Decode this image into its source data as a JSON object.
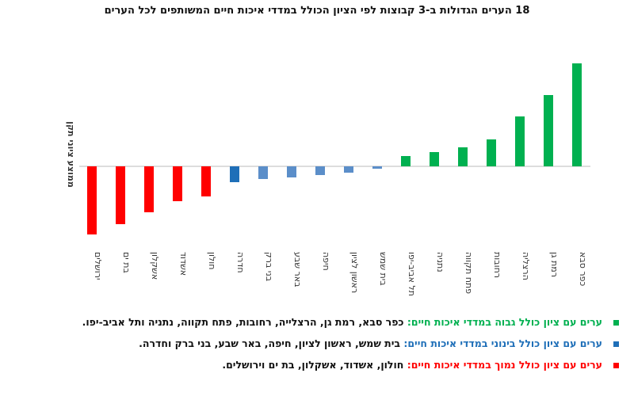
{
  "chart_data": {
    "type": "bar",
    "title": "18 הערים הגדולות ב-3 קבוצות לפי הציון הכולל במדדי איכות חיים המשותפים לכל הערים",
    "y_label": "ממוצע ציוני תקן",
    "categories": [
      "כפר סבא",
      "רמת גן",
      "הרצליה",
      "רחובות",
      "פתח תקווה",
      "נתניה",
      "תל אביב-יפו",
      "בית שמש",
      "ראשון לציון",
      "חיפה",
      "באר שבע",
      "בני ברק",
      "חדרה",
      "חולון",
      "אשדוד",
      "אשקלון",
      "בת ים",
      "ירושלים"
    ],
    "values": [
      1.3,
      0.9,
      0.63,
      0.34,
      0.24,
      0.18,
      0.13,
      -0.03,
      -0.08,
      -0.11,
      -0.14,
      -0.16,
      -0.2,
      -0.38,
      -0.44,
      -0.58,
      -0.73,
      -0.86
    ],
    "colors": [
      "#00b050",
      "#00b050",
      "#00b050",
      "#00b050",
      "#00b050",
      "#00b050",
      "#00b050",
      "#5b8ec9",
      "#5b8ec9",
      "#5b8ec9",
      "#5b8ec9",
      "#5b8ec9",
      "#1f6fb8",
      "#ff0000",
      "#ff0000",
      "#ff0000",
      "#ff0000",
      "#ff0000"
    ],
    "notes": [
      {
        "label": "ערים עם ציון כולל גבוה במדדי איכות חיים:",
        "text": "כפר סבא, רמת גן, הרצלייה, רחובות, פתח תקווה, נתניה ותל אביב-יפו.",
        "color": "#00b050"
      },
      {
        "label": "ערים עם ציון כולל בינוני במדדי איכות חיים:",
        "text": "בית שמש, ראשון לציון, חיפה, באר שבע, בני ברק וחדרה.",
        "color": "#1f6fb8"
      },
      {
        "label": "ערים עם ציון כולל נמוך במדדי איכות חיים:",
        "text": "חולון, אשדוד, אשקלון, בת ים וירושלים.",
        "color": "#ff0000"
      }
    ]
  }
}
